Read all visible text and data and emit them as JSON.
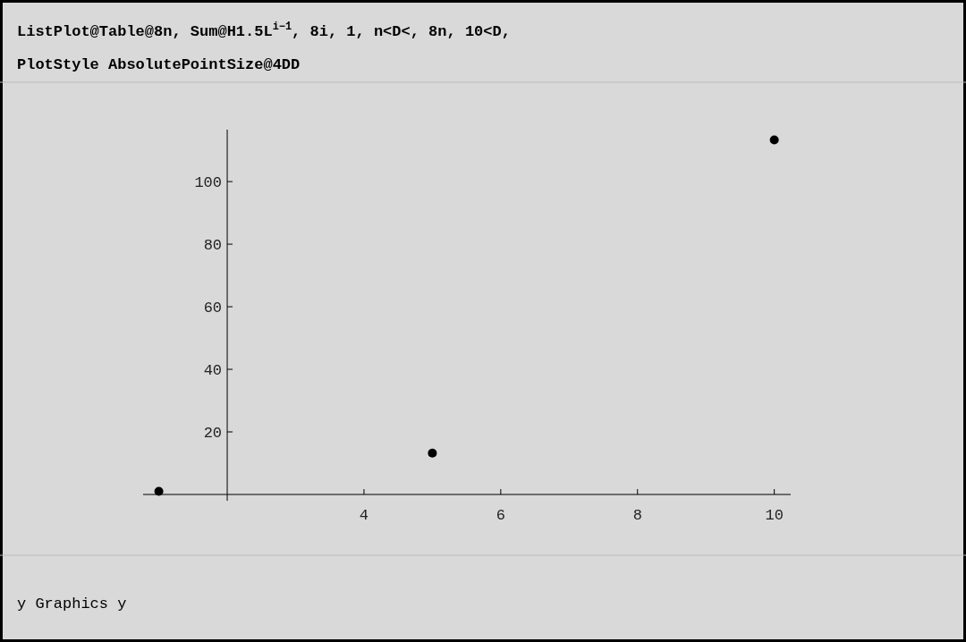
{
  "chart_data": {
    "type": "scatter",
    "title": "ListPlot@Table@8n, Sum@H1.5L$^{i−1}$, 8i, 1, n<D<, 8n, 10<D,",
    "subtitle": "PlotStyle   AbsolutePointSize@4DD",
    "annotations": [
      "y Graphics y"
    ],
    "x": [
      1,
      5,
      10
    ],
    "series": [
      {
        "color": "#000000",
        "values": [
          1,
          13.2,
          113.3
        ]
      }
    ],
    "marker": "circle",
    "grid": false,
    "xlim": [
      0.77,
      10.24
    ],
    "ylim": [
      0,
      116.6
    ],
    "xticks": [
      4,
      6,
      8,
      10
    ],
    "yticks": [
      20,
      40,
      60,
      80,
      100
    ]
  }
}
